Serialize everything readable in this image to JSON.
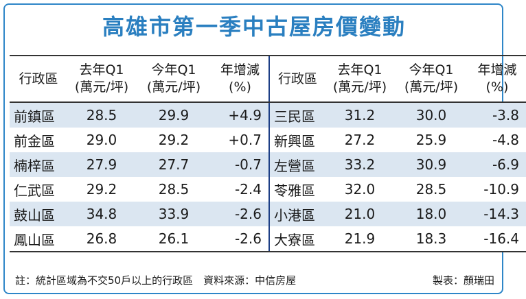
{
  "title": "高雄市第一季中古屋房價變動",
  "headers": {
    "district": "行政區",
    "prev": [
      "去年Q1",
      "(萬元/坪)"
    ],
    "curr": [
      "今年Q1",
      "(萬元/坪)"
    ],
    "change": [
      "年增減",
      "(%)"
    ]
  },
  "chart_data": {
    "type": "table",
    "title": "高雄市第一季中古屋房價變動",
    "columns": [
      "行政區",
      "去年Q1 (萬元/坪)",
      "今年Q1 (萬元/坪)",
      "年增減 (%)"
    ],
    "left": [
      {
        "district": "前鎮區",
        "prev": "28.5",
        "curr": "29.9",
        "change": "+4.9"
      },
      {
        "district": "前金區",
        "prev": "29.0",
        "curr": "29.2",
        "change": "+0.7"
      },
      {
        "district": "楠梓區",
        "prev": "27.9",
        "curr": "27.7",
        "change": "-0.7"
      },
      {
        "district": "仁武區",
        "prev": "29.2",
        "curr": "28.5",
        "change": "-2.4"
      },
      {
        "district": "鼓山區",
        "prev": "34.8",
        "curr": "33.9",
        "change": "-2.6"
      },
      {
        "district": "鳳山區",
        "prev": "26.8",
        "curr": "26.1",
        "change": "-2.6"
      }
    ],
    "right": [
      {
        "district": "三民區",
        "prev": "31.2",
        "curr": "30.0",
        "change": "-3.8"
      },
      {
        "district": "新興區",
        "prev": "27.2",
        "curr": "25.9",
        "change": "-4.8"
      },
      {
        "district": "左營區",
        "prev": "33.2",
        "curr": "30.9",
        "change": "-6.9"
      },
      {
        "district": "苓雅區",
        "prev": "32.0",
        "curr": "28.5",
        "change": "-10.9"
      },
      {
        "district": "小港區",
        "prev": "21.0",
        "curr": "18.0",
        "change": "-14.3"
      },
      {
        "district": "大寮區",
        "prev": "21.9",
        "curr": "18.3",
        "change": "-16.4"
      }
    ]
  },
  "footer": {
    "note": "註：統計區域為不交50戶以上的行政區　資料來源：中信房屋",
    "credit": "製表：顏瑞田"
  },
  "colors": {
    "title": "#2a7fc0",
    "frame": "#2e86c8",
    "row_shade": "#dbe6f1",
    "separator": "#1d3f86"
  }
}
